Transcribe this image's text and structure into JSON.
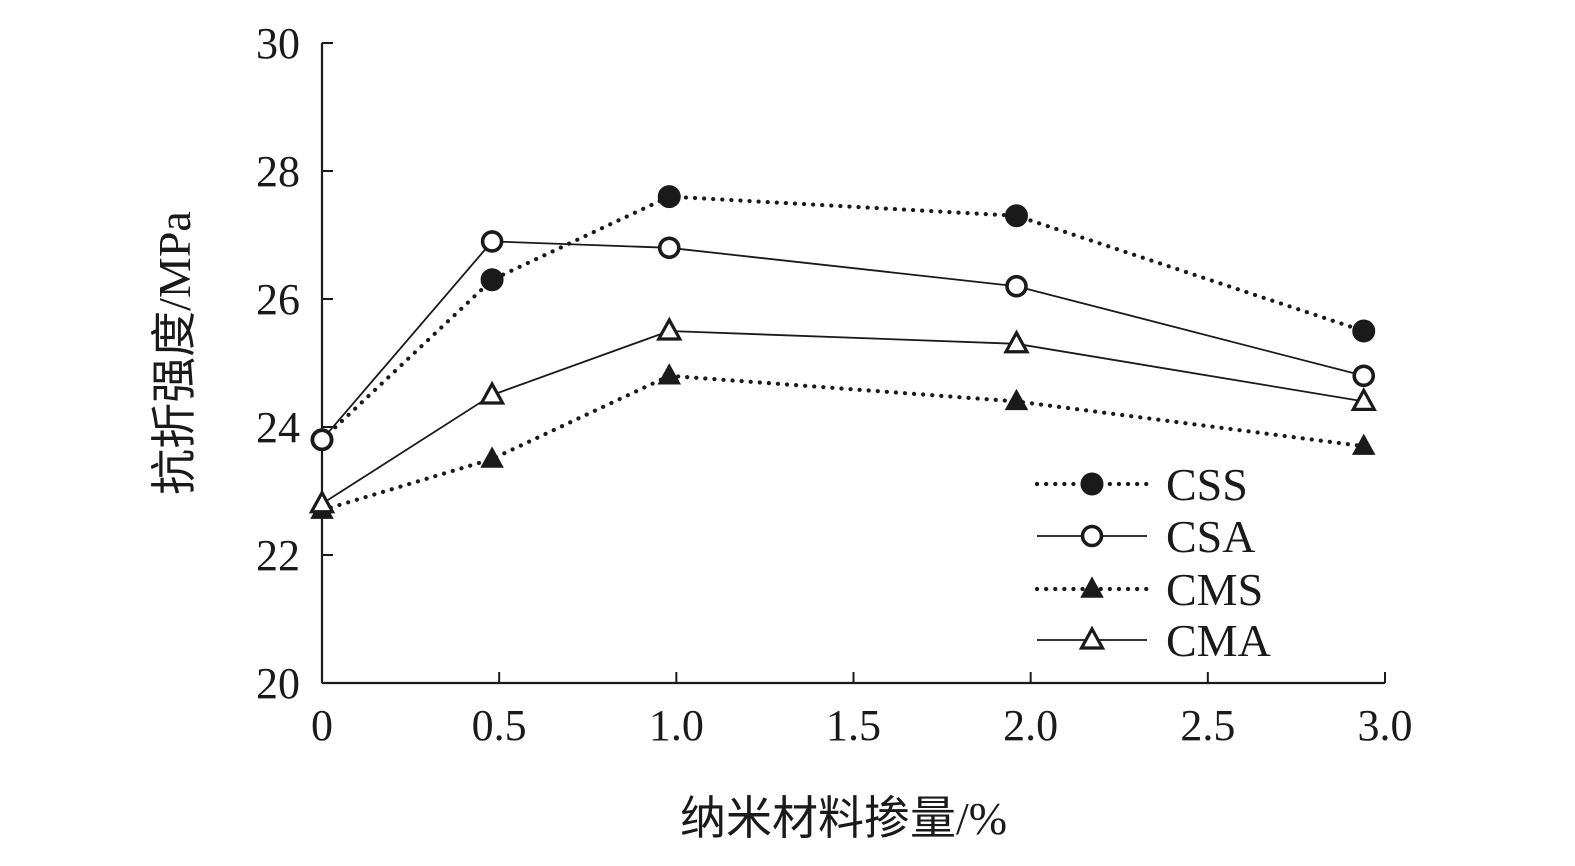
{
  "chart_data": {
    "type": "line",
    "title": "",
    "xlabel": "纳米材料掺量/%",
    "ylabel": "抗折强度/MPa",
    "x": [
      0,
      0.5,
      1.0,
      2.0,
      3.0
    ],
    "xlim": [
      0,
      3.0
    ],
    "ylim": [
      20,
      30
    ],
    "xticks": [
      "0",
      "0.5",
      "1.0",
      "1.5",
      "2.0",
      "2.5",
      "3.0"
    ],
    "xtick_values": [
      0,
      0.5,
      1.0,
      1.5,
      2.0,
      2.5,
      3.0
    ],
    "yticks": [
      "20",
      "22",
      "24",
      "26",
      "28",
      "30"
    ],
    "ytick_values": [
      20,
      22,
      24,
      26,
      28,
      30
    ],
    "grid": false,
    "legend_position": "bottom-right",
    "series": [
      {
        "name": "CSS",
        "x": [
          0,
          0.48,
          0.98,
          1.96,
          2.94
        ],
        "values": [
          23.8,
          26.3,
          27.6,
          27.3,
          25.5
        ],
        "line": "dotted",
        "marker": "filled-circle",
        "color": "#1a1a1a"
      },
      {
        "name": "CSA",
        "x": [
          0,
          0.48,
          0.98,
          1.96,
          2.94
        ],
        "values": [
          23.8,
          26.9,
          26.8,
          26.2,
          24.8
        ],
        "line": "solid",
        "marker": "open-circle",
        "color": "#1a1a1a"
      },
      {
        "name": "CMS",
        "x": [
          0,
          0.48,
          0.98,
          1.96,
          2.94
        ],
        "values": [
          22.7,
          23.5,
          24.8,
          24.4,
          23.7
        ],
        "line": "dotted",
        "marker": "filled-triangle",
        "color": "#1a1a1a"
      },
      {
        "name": "CMA",
        "x": [
          0,
          0.48,
          0.98,
          1.96,
          2.94
        ],
        "values": [
          22.8,
          24.5,
          25.5,
          25.3,
          24.4
        ],
        "line": "solid",
        "marker": "open-triangle",
        "color": "#1a1a1a"
      }
    ]
  }
}
